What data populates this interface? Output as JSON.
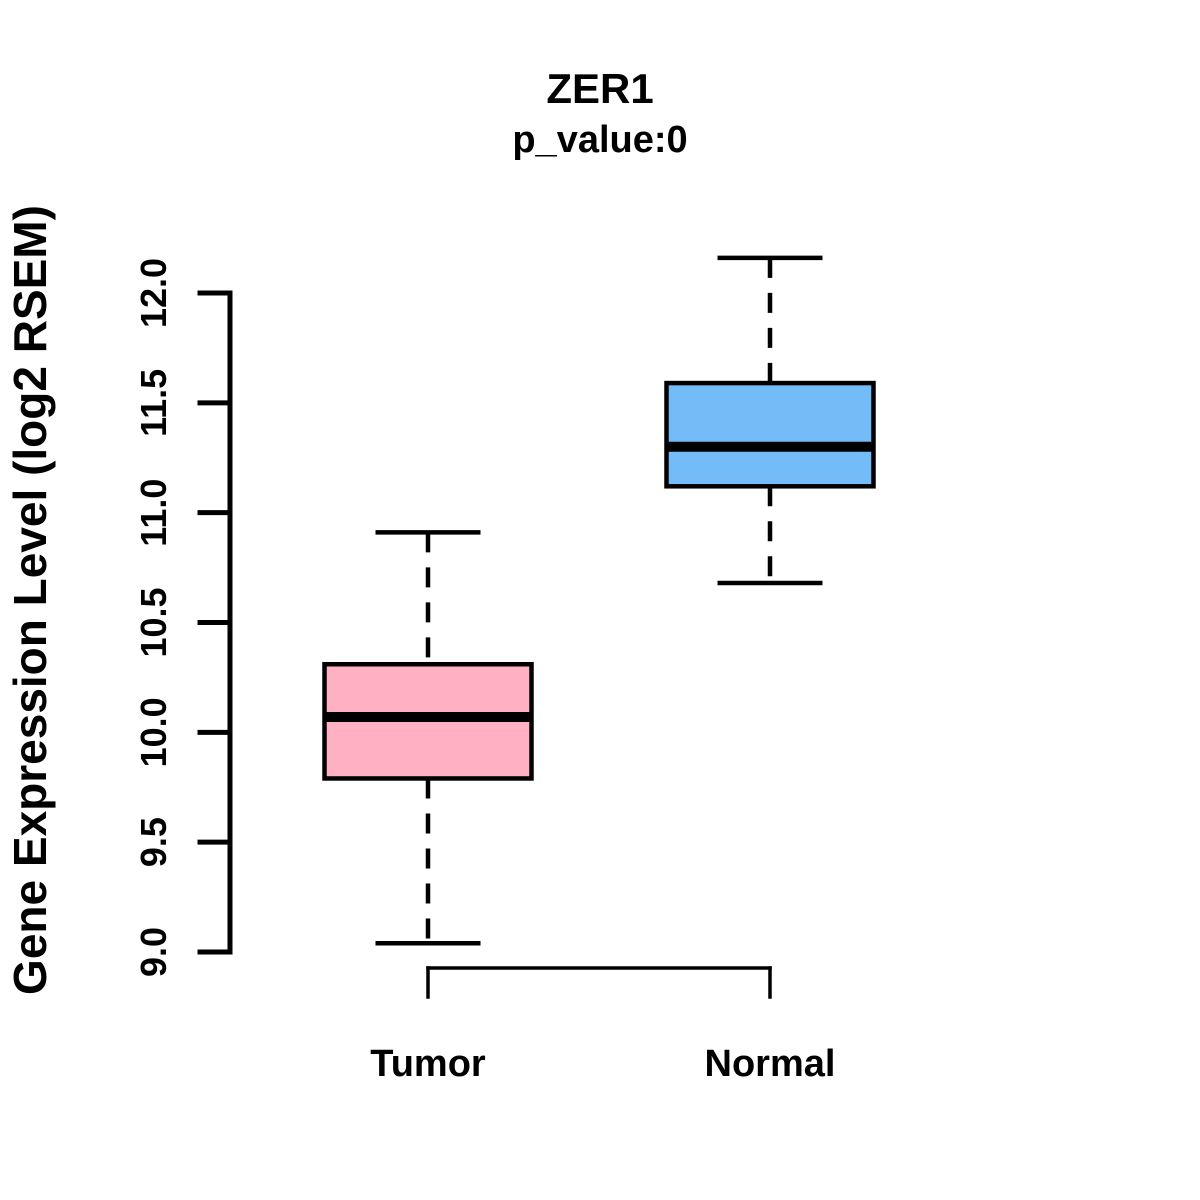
{
  "chart_data": {
    "type": "boxplot",
    "title": "ZER1",
    "subtitle": "p_value:0",
    "ylabel": "Gene Expression Level (log2 RSEM)",
    "xlabel": "",
    "categories": [
      "Tumor",
      "Normal"
    ],
    "ylim": [
      9.0,
      12.0
    ],
    "yticks": [
      9.0,
      9.5,
      10.0,
      10.5,
      11.0,
      11.5,
      12.0
    ],
    "ytick_labels": [
      "9.0",
      "9.5",
      "10.0",
      "10.5",
      "11.0",
      "11.5",
      "12.0"
    ],
    "grid": false,
    "legend": "none",
    "line_color": "#000000",
    "series": [
      {
        "name": "Tumor",
        "fill_color": "#FFB0C2",
        "min": 9.04,
        "q1": 9.79,
        "median": 10.07,
        "q3": 10.31,
        "max": 10.91
      },
      {
        "name": "Normal",
        "fill_color": "#73BCF7",
        "min": 10.68,
        "q1": 11.12,
        "median": 11.3,
        "q3": 11.59,
        "max": 12.16
      }
    ]
  }
}
